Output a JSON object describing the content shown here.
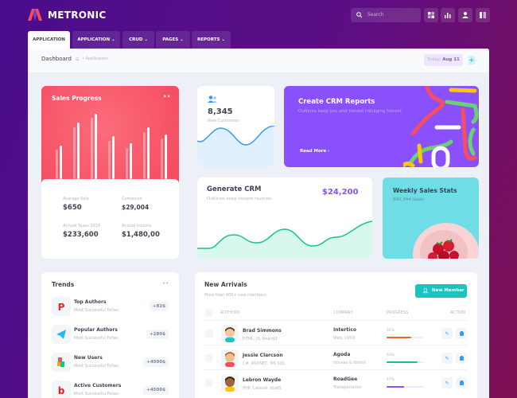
{
  "brand": {
    "name": "METRONIC"
  },
  "header": {
    "search_placeholder": "Search",
    "icons": [
      "grid-icon",
      "chart-icon",
      "user-icon",
      "layout-icon"
    ]
  },
  "tabs": [
    {
      "label": "APPLICATION",
      "active": true
    },
    {
      "label": "APPLICATION"
    },
    {
      "label": "CRUD"
    },
    {
      "label": "PAGES"
    },
    {
      "label": "REPORTS"
    }
  ],
  "subheader": {
    "title": "Dashboard",
    "breadcrumb": "Application",
    "today_label": "Today:",
    "today_value": "Aug 11"
  },
  "sales": {
    "title": "Sales Progress",
    "bars": [
      [
        37,
        42
      ],
      [
        65,
        71
      ],
      [
        77,
        82
      ],
      [
        48,
        54
      ],
      [
        39,
        45
      ],
      [
        59,
        65
      ],
      [
        51,
        56
      ]
    ],
    "stats": [
      {
        "label": "Avarage Sale",
        "value": "$650"
      },
      {
        "label": "Comission",
        "value": "$29,004"
      },
      {
        "label": "Annual Taxes 2019",
        "value": "$233,600"
      },
      {
        "label": "Annual Income",
        "value": "$1,480,00"
      }
    ]
  },
  "customers": {
    "value": "8,345",
    "label": "New Customers"
  },
  "crm_reports": {
    "title": "Create CRM Reports",
    "subtitle": "Outlines keep you and honest indulging honest",
    "link": "Read More"
  },
  "generate_crm": {
    "title": "Generate CRM",
    "subtitle": "Outlines keep honest reviews",
    "amount": "$24,200"
  },
  "weekly": {
    "title": "Weekly Sales Stats",
    "subtitle": "890,344 Sales"
  },
  "trends": {
    "title": "Trends",
    "items": [
      {
        "title": "Top Authors",
        "subtitle": "Most Successful Fellas",
        "value": "+82$",
        "icon": "pinterest-icon"
      },
      {
        "title": "Popular Authors",
        "subtitle": "Most Successful Fellas",
        "value": "+280$",
        "icon": "telegram-icon"
      },
      {
        "title": "New Users",
        "subtitle": "Most Successful Fellas",
        "value": "+4500$",
        "icon": "puzzle-icon"
      },
      {
        "title": "Active Customers",
        "subtitle": "Most Successful Fellas",
        "value": "+4500$",
        "icon": "bebo-icon"
      }
    ]
  },
  "arrivals": {
    "title": "New Arrivals",
    "subtitle": "More than 400+ new members",
    "button": "New Member",
    "columns": [
      "AUTHORS",
      "COMPANY",
      "PROGRESS",
      "ACTION"
    ],
    "rows": [
      {
        "name": "Brad Simmons",
        "skills": "HTML, JS, ReactJS",
        "company": "Intertico",
        "type": "Web, UI/UX",
        "progress": 65,
        "progress_label": "65%",
        "color": "#f1622a"
      },
      {
        "name": "Jessie Clarcson",
        "skills": "C#, ASP.NET, MS SQL",
        "company": "Agoda",
        "type": "Houses & Hotels",
        "progress": 83,
        "progress_label": "83%",
        "color": "#1bc47d"
      },
      {
        "name": "Lebron Wayde",
        "skills": "PHP, Laravel, VueJS",
        "company": "RoadGee",
        "type": "Transportation",
        "progress": 47,
        "progress_label": "47%",
        "color": "#8950fc"
      }
    ]
  }
}
